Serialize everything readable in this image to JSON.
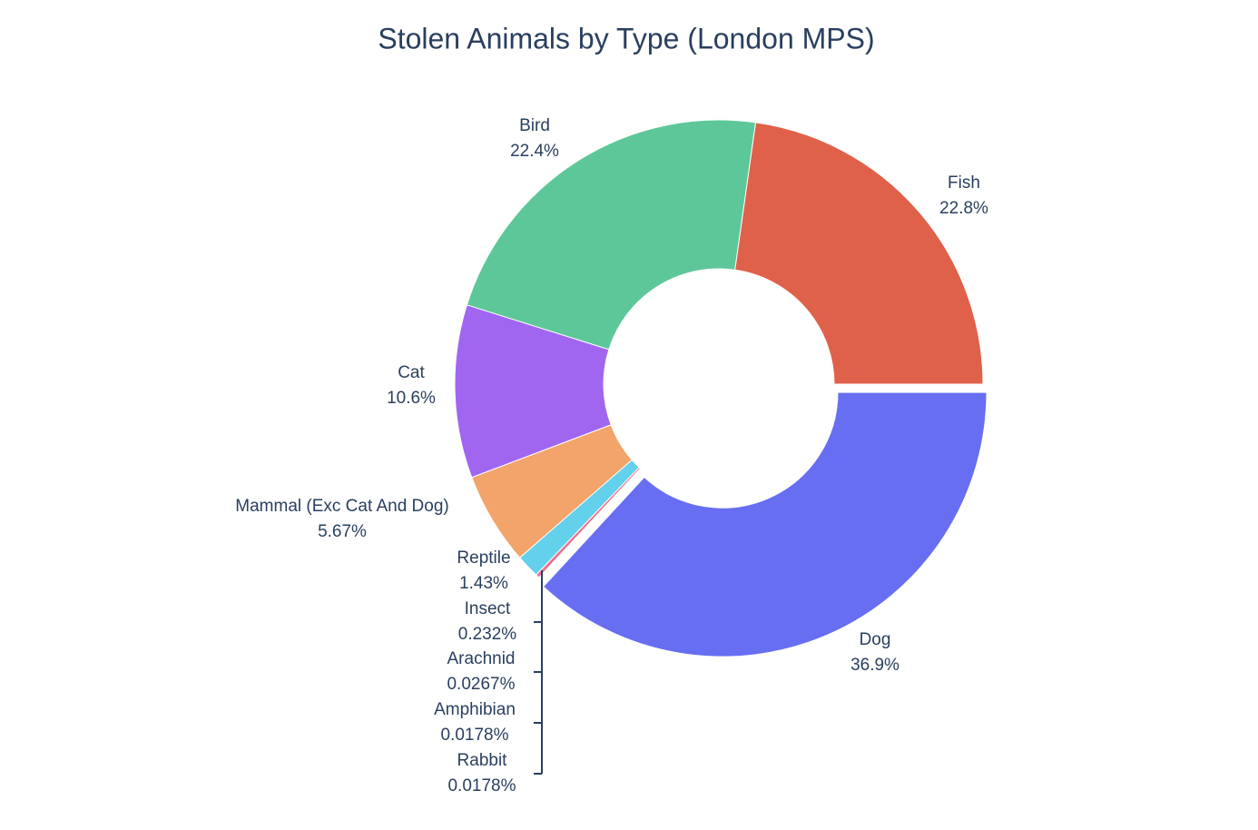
{
  "chart_data": {
    "type": "pie",
    "title": "Stolen Animals by Type (London MPS)",
    "categories": [
      "Fish",
      "Bird",
      "Cat",
      "Mammal (Exc Cat And Dog)",
      "Reptile",
      "Insect",
      "Arachnid",
      "Amphibian",
      "Rabbit",
      "Dog"
    ],
    "values": [
      22.8,
      22.4,
      10.6,
      5.67,
      1.43,
      0.232,
      0.0267,
      0.0178,
      0.0178,
      36.9
    ],
    "value_labels": [
      "22.8%",
      "22.4%",
      "10.6%",
      "5.67%",
      "1.43%",
      "0.232%",
      "0.0267%",
      "0.0178%",
      "0.0178%",
      "36.9%"
    ],
    "colors": [
      "#e0614a",
      "#5dc79a",
      "#a066f0",
      "#f2a46a",
      "#63d0ec",
      "#ef6f8d",
      "#b6e880",
      "#ff97ff",
      "#fecb52",
      "#676ef2"
    ],
    "hole": true
  }
}
